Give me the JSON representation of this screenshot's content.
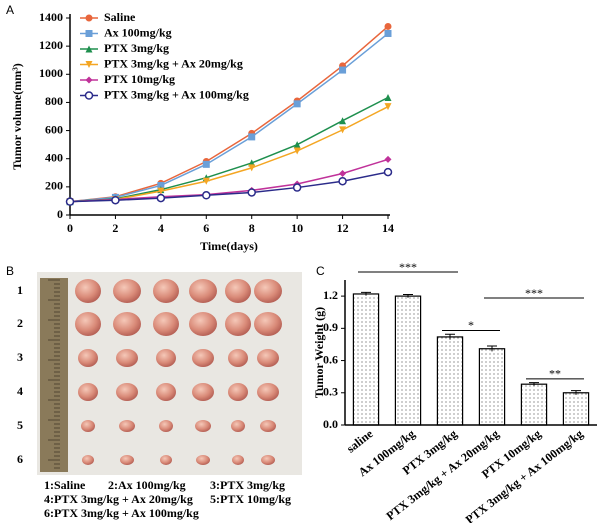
{
  "panel_labels": [
    "A",
    "B",
    "C"
  ],
  "chart_data": [
    {
      "type": "line",
      "xlabel": "Time(days)",
      "ylabel": "Tumor volume(mm³)",
      "x": [
        0,
        2,
        4,
        6,
        8,
        10,
        12,
        14
      ],
      "xlim": [
        0,
        14
      ],
      "xticks": [
        0,
        2,
        4,
        6,
        8,
        10,
        12,
        14
      ],
      "ylim": [
        0,
        1400
      ],
      "yticks": [
        0,
        200,
        400,
        600,
        800,
        1000,
        1200,
        1400
      ],
      "series": [
        {
          "name": "Saline",
          "color": "#e8663c",
          "marker": "circle",
          "values": [
            95,
            130,
            225,
            380,
            580,
            810,
            1060,
            1340
          ]
        },
        {
          "name": "Ax 100mg/kg",
          "color": "#6a9fd8",
          "marker": "square",
          "values": [
            95,
            125,
            210,
            360,
            555,
            790,
            1030,
            1290
          ]
        },
        {
          "name": "PTX 3mg/kg",
          "color": "#1e8f4e",
          "marker": "triangle",
          "values": [
            95,
            115,
            180,
            265,
            370,
            500,
            670,
            835
          ]
        },
        {
          "name": "PTX 3mg/kg + Ax 20mg/kg",
          "color": "#f4a623",
          "marker": "triangle-down",
          "values": [
            95,
            110,
            170,
            240,
            335,
            455,
            605,
            770
          ]
        },
        {
          "name": "PTX 10mg/kg",
          "color": "#c0329a",
          "marker": "diamond",
          "values": [
            95,
            110,
            130,
            145,
            175,
            220,
            295,
            395
          ]
        },
        {
          "name": "PTX 3mg/kg + Ax 100mg/kg",
          "color": "#2b2b8a",
          "marker": "open-circle",
          "values": [
            95,
            105,
            120,
            140,
            160,
            195,
            240,
            305
          ]
        }
      ]
    },
    {
      "type": "bar",
      "ylabel": "Tumor Weight (g)",
      "categories": [
        "saline",
        "Ax 100mg/kg",
        "PTX 3mg/kg",
        "PTX 3mg/kg + Ax 20mg/kg",
        "PTX 10mg/kg",
        "PTX 3mg/kg + Ax 100mg/kg"
      ],
      "values": [
        1.22,
        1.2,
        0.82,
        0.71,
        0.38,
        0.3
      ],
      "errors": [
        0.015,
        0.015,
        0.025,
        0.025,
        0.015,
        0.02
      ],
      "ylim": [
        0,
        1.35
      ],
      "yticks": [
        {
          "value": 0,
          "label": "0.0"
        },
        0.3,
        0.6,
        0.9,
        1.2
      ],
      "annotations": [
        {
          "text": "***",
          "from": 0,
          "to": 2
        },
        {
          "text": "*",
          "from": 2,
          "to": 3
        },
        {
          "text": "***",
          "from": 3,
          "to": 5
        },
        {
          "text": "**",
          "from": 4,
          "to": 5
        }
      ]
    }
  ],
  "photo_panel": {
    "rows": [
      "1",
      "2",
      "3",
      "4",
      "5",
      "6"
    ],
    "legend": [
      "1:Saline",
      "2:Ax 100mg/kg",
      "3:PTX 3mg/kg",
      "4:PTX 3mg/kg + Ax 20mg/kg",
      "5:PTX 10mg/kg",
      "6:PTX 3mg/kg + Ax 100mg/kg"
    ]
  }
}
